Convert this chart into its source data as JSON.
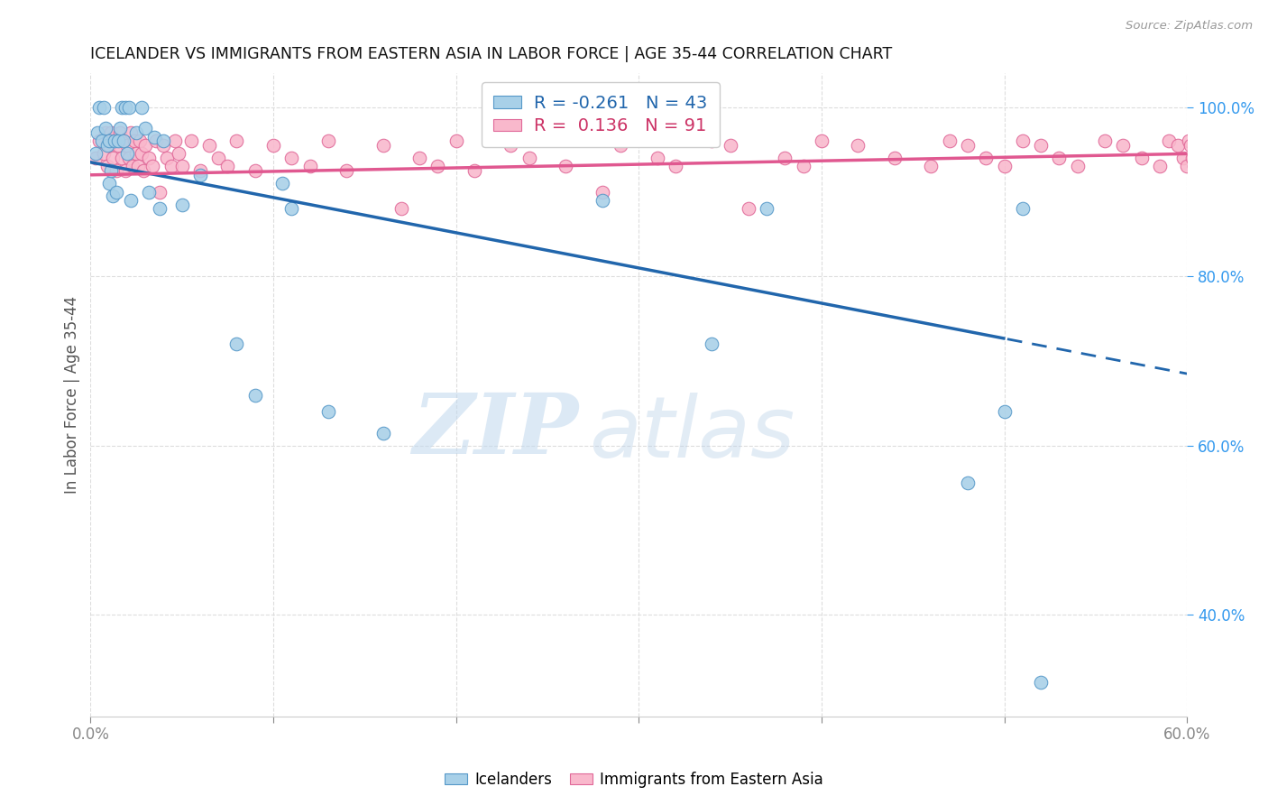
{
  "title": "ICELANDER VS IMMIGRANTS FROM EASTERN ASIA IN LABOR FORCE | AGE 35-44 CORRELATION CHART",
  "source": "Source: ZipAtlas.com",
  "ylabel": "In Labor Force | Age 35-44",
  "x_min": 0.0,
  "x_max": 0.6,
  "y_min": 0.28,
  "y_max": 1.04,
  "blue_color": "#a8d0e8",
  "pink_color": "#f9b8cc",
  "blue_edge_color": "#5598c8",
  "pink_edge_color": "#e06898",
  "blue_line_color": "#2166ac",
  "pink_line_color": "#e05890",
  "legend_r_blue": "-0.261",
  "legend_n_blue": "43",
  "legend_r_pink": "0.136",
  "legend_n_pink": "91",
  "watermark_zip": "ZIP",
  "watermark_atlas": "atlas",
  "blue_line_x0": 0.0,
  "blue_line_y0": 0.935,
  "blue_line_x1": 0.6,
  "blue_line_y1": 0.685,
  "blue_line_solid_end": 0.5,
  "pink_line_x0": 0.0,
  "pink_line_y0": 0.92,
  "pink_line_x1": 0.6,
  "pink_line_y1": 0.945,
  "blue_scatter_x": [
    0.003,
    0.004,
    0.005,
    0.006,
    0.007,
    0.008,
    0.009,
    0.01,
    0.01,
    0.011,
    0.012,
    0.013,
    0.014,
    0.015,
    0.016,
    0.017,
    0.018,
    0.019,
    0.02,
    0.021,
    0.022,
    0.025,
    0.028,
    0.03,
    0.032,
    0.035,
    0.038,
    0.04,
    0.05,
    0.06,
    0.08,
    0.09,
    0.105,
    0.11,
    0.13,
    0.16,
    0.28,
    0.34,
    0.37,
    0.48,
    0.5,
    0.51,
    0.52
  ],
  "blue_scatter_y": [
    0.945,
    0.97,
    1.0,
    0.96,
    1.0,
    0.975,
    0.955,
    0.91,
    0.96,
    0.925,
    0.895,
    0.96,
    0.9,
    0.96,
    0.975,
    1.0,
    0.96,
    1.0,
    0.945,
    1.0,
    0.89,
    0.97,
    1.0,
    0.975,
    0.9,
    0.965,
    0.88,
    0.96,
    0.885,
    0.92,
    0.72,
    0.66,
    0.91,
    0.88,
    0.64,
    0.615,
    0.89,
    0.72,
    0.88,
    0.556,
    0.64,
    0.88,
    0.32
  ],
  "pink_scatter_x": [
    0.003,
    0.005,
    0.007,
    0.008,
    0.009,
    0.01,
    0.011,
    0.012,
    0.013,
    0.014,
    0.015,
    0.016,
    0.017,
    0.018,
    0.019,
    0.02,
    0.021,
    0.022,
    0.023,
    0.024,
    0.025,
    0.026,
    0.027,
    0.028,
    0.029,
    0.03,
    0.032,
    0.034,
    0.036,
    0.038,
    0.04,
    0.042,
    0.044,
    0.046,
    0.048,
    0.05,
    0.055,
    0.06,
    0.065,
    0.07,
    0.075,
    0.08,
    0.09,
    0.1,
    0.11,
    0.12,
    0.13,
    0.14,
    0.16,
    0.17,
    0.18,
    0.19,
    0.2,
    0.21,
    0.23,
    0.24,
    0.26,
    0.28,
    0.29,
    0.31,
    0.32,
    0.34,
    0.35,
    0.36,
    0.38,
    0.39,
    0.4,
    0.42,
    0.44,
    0.46,
    0.47,
    0.48,
    0.49,
    0.5,
    0.51,
    0.52,
    0.53,
    0.54,
    0.555,
    0.565,
    0.575,
    0.585,
    0.59,
    0.595,
    0.598,
    0.6,
    0.601,
    0.602,
    0.603,
    0.604,
    0.605
  ],
  "pink_scatter_y": [
    0.94,
    0.96,
    0.945,
    0.97,
    0.93,
    0.955,
    0.97,
    0.94,
    0.96,
    0.925,
    0.955,
    0.97,
    0.94,
    0.96,
    0.925,
    0.955,
    0.94,
    0.97,
    0.93,
    0.96,
    0.945,
    0.93,
    0.96,
    0.945,
    0.925,
    0.955,
    0.94,
    0.93,
    0.96,
    0.9,
    0.955,
    0.94,
    0.93,
    0.96,
    0.945,
    0.93,
    0.96,
    0.925,
    0.955,
    0.94,
    0.93,
    0.96,
    0.925,
    0.955,
    0.94,
    0.93,
    0.96,
    0.925,
    0.955,
    0.88,
    0.94,
    0.93,
    0.96,
    0.925,
    0.955,
    0.94,
    0.93,
    0.9,
    0.955,
    0.94,
    0.93,
    0.96,
    0.955,
    0.88,
    0.94,
    0.93,
    0.96,
    0.955,
    0.94,
    0.93,
    0.96,
    0.955,
    0.94,
    0.93,
    0.96,
    0.955,
    0.94,
    0.93,
    0.96,
    0.955,
    0.94,
    0.93,
    0.96,
    0.955,
    0.94,
    0.93,
    0.96,
    0.955,
    0.94,
    0.93,
    0.955
  ]
}
